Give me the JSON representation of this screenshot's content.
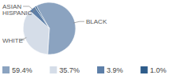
{
  "chart_data": {
    "type": "pie",
    "categories": [
      "BLACK",
      "WHITE",
      "ASIAN",
      "HISPANIC"
    ],
    "values": [
      59.4,
      35.7,
      3.9,
      1.0
    ],
    "value_labels": [
      "59.4%",
      "35.7%",
      "3.9%",
      "1.0%"
    ],
    "colors": [
      "#8ba3c0",
      "#d5dde8",
      "#5d7fa8",
      "#2e5c8a"
    ]
  }
}
